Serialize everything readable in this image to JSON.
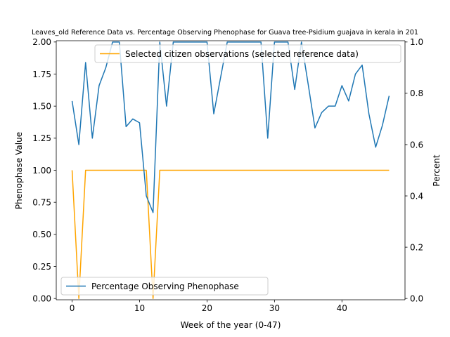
{
  "chart_data": {
    "type": "line",
    "title": "Leaves_old Reference Data vs. Percentage Observing Phenophase for Guava tree-Psidium guajava in kerala in 201",
    "xlabel": "Week of the year (0-47)",
    "ylabel_left": "Phenophase Value",
    "ylabel_right": "Percent",
    "xlim": [
      -2.35,
      49.35
    ],
    "ylim_left": [
      -0.01,
      2.01
    ],
    "ylim_right": [
      -0.005,
      1.005
    ],
    "xticks": [
      "0",
      "10",
      "20",
      "30",
      "40"
    ],
    "yticks_left": [
      "0.00",
      "0.25",
      "0.50",
      "0.75",
      "1.00",
      "1.25",
      "1.50",
      "1.75",
      "2.00"
    ],
    "yticks_right": [
      "0.0",
      "0.2",
      "0.4",
      "0.6",
      "0.8",
      "1.0"
    ],
    "grid": false,
    "series": [
      {
        "name": "Selected citizen observations (selected reference data)",
        "axis": "left",
        "color": "#ffa500",
        "legend_position": "upper right",
        "x": [
          0,
          1,
          2,
          3,
          4,
          5,
          6,
          7,
          8,
          9,
          10,
          11,
          12,
          13,
          14,
          15,
          16,
          17,
          18,
          19,
          20,
          21,
          22,
          23,
          24,
          25,
          26,
          27,
          28,
          29,
          30,
          31,
          32,
          33,
          34,
          35,
          36,
          37,
          38,
          39,
          40,
          41,
          42,
          43,
          44,
          45,
          46,
          47
        ],
        "y": [
          1,
          0,
          1,
          1,
          1,
          1,
          1,
          1,
          1,
          1,
          1,
          1,
          0,
          1,
          1,
          1,
          1,
          1,
          1,
          1,
          1,
          1,
          1,
          1,
          1,
          1,
          1,
          1,
          1,
          1,
          1,
          1,
          1,
          1,
          1,
          1,
          1,
          1,
          1,
          1,
          1,
          1,
          1,
          1,
          1,
          1,
          1,
          1
        ]
      },
      {
        "name": "Percentage Observing Phenophase",
        "axis": "right",
        "color": "#1f77b4",
        "legend_position": "lower left",
        "x": [
          0,
          1,
          2,
          3,
          4,
          5,
          6,
          7,
          8,
          9,
          10,
          11,
          12,
          13,
          14,
          15,
          16,
          17,
          18,
          19,
          20,
          21,
          22,
          23,
          24,
          25,
          26,
          27,
          28,
          29,
          30,
          31,
          32,
          33,
          34,
          35,
          36,
          37,
          38,
          39,
          40,
          41,
          42,
          43,
          44,
          45,
          46,
          47
        ],
        "y": [
          0.77,
          0.6,
          0.92,
          0.625,
          0.83,
          0.9,
          1.0,
          1.0,
          0.67,
          0.7,
          0.685,
          0.4,
          0.335,
          1.0,
          0.75,
          1.0,
          1.0,
          1.0,
          1.0,
          1.0,
          1.0,
          0.72,
          0.86,
          1.0,
          1.0,
          1.0,
          1.0,
          1.0,
          1.0,
          0.625,
          1.0,
          1.0,
          1.0,
          0.815,
          1.0,
          0.835,
          0.665,
          0.725,
          0.75,
          0.75,
          0.83,
          0.77,
          0.875,
          0.91,
          0.72,
          0.59,
          0.675,
          0.79
        ]
      }
    ]
  }
}
